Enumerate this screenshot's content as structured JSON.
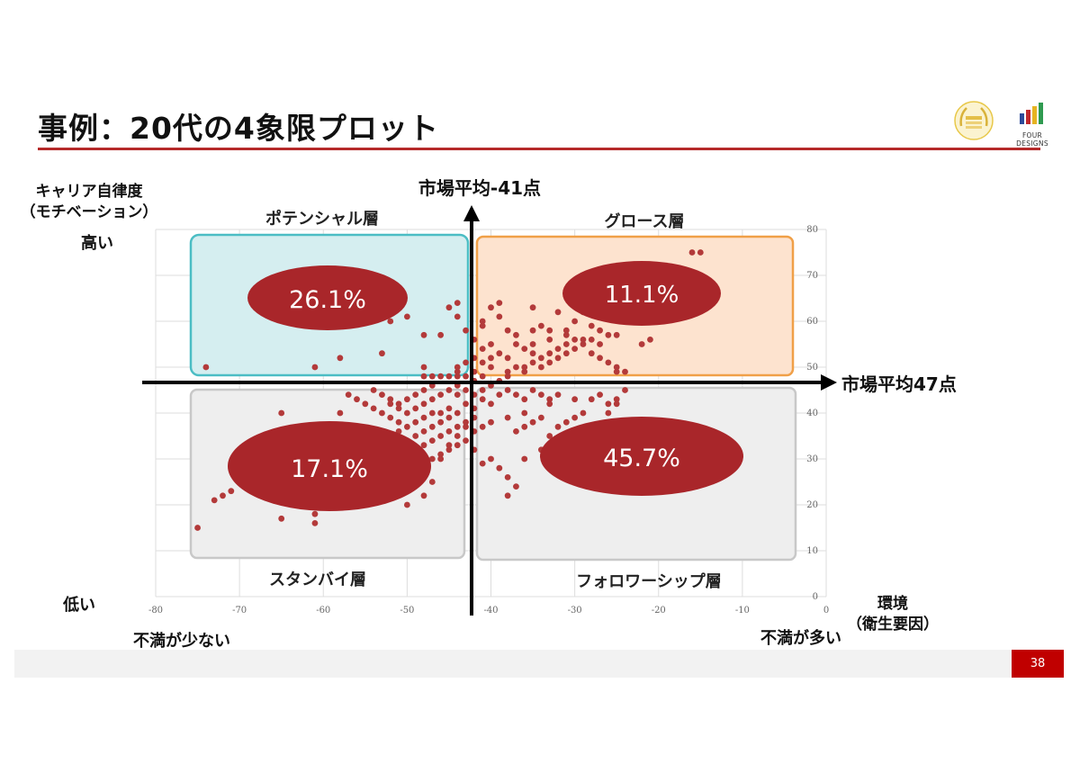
{
  "slide": {
    "title": "事例：20代の4象限プロット",
    "page_number": "38",
    "brand_name": "FOUR DESIGNS"
  },
  "axis_labels": {
    "y_axis_title": "キャリア自律度",
    "y_axis_subtitle": "（モチベーション）",
    "y_high": "高い",
    "y_low": "低い",
    "x_axis_title": "環境",
    "x_axis_subtitle": "（衛生要因）",
    "x_low": "不満が少ない",
    "x_high": "不満が多い",
    "market_avg_x": "市場平均-41点",
    "market_avg_y": "市場平均47点"
  },
  "quadrants": {
    "top_left": {
      "name": "ポテンシャル層",
      "share": "26.1%"
    },
    "top_right": {
      "name": "グロース層",
      "share": "11.1%"
    },
    "bottom_left": {
      "name": "スタンバイ層",
      "share": "17.1%"
    },
    "bottom_right": {
      "name": "フォロワーシップ層",
      "share": "45.7%"
    }
  },
  "colors": {
    "accent": "#b52a2a",
    "point": "#b33a3a",
    "ellipse": "#a9262a",
    "top_left_fill": "#d5eef0",
    "top_left_stroke": "#4bbdc4",
    "top_right_fill": "#fde3cf",
    "top_right_stroke": "#f0a048",
    "bottom_fill": "#eeeeee",
    "bottom_stroke": "#c8c8c8"
  },
  "chart_data": {
    "type": "scatter",
    "xlim": [
      -80,
      0
    ],
    "ylim": [
      0,
      80
    ],
    "x_ticks": [
      -80,
      -70,
      -60,
      -50,
      -40,
      -30,
      -20,
      -10,
      0
    ],
    "y_ticks": [
      0,
      10,
      20,
      30,
      40,
      50,
      60,
      70,
      80
    ],
    "tick_labels_x": [
      "-80",
      "-70",
      "-60",
      "-50",
      "-40",
      "-30",
      "-20",
      "-10",
      "0"
    ],
    "tick_labels_y": [
      "0",
      "10",
      "20",
      "30",
      "40",
      "50",
      "60",
      "70",
      "80"
    ],
    "grid": true,
    "reference_lines": {
      "x": -41,
      "y": 47
    },
    "points": [
      [
        -16,
        75
      ],
      [
        -15,
        75
      ],
      [
        -44,
        64
      ],
      [
        -45,
        63
      ],
      [
        -44,
        61
      ],
      [
        -39,
        64
      ],
      [
        -40,
        63
      ],
      [
        -39,
        61
      ],
      [
        -35,
        63
      ],
      [
        -32,
        62
      ],
      [
        -29,
        62
      ],
      [
        -41,
        60
      ],
      [
        -43,
        58
      ],
      [
        -42,
        56
      ],
      [
        -46,
        57
      ],
      [
        -41,
        59
      ],
      [
        -38,
        58
      ],
      [
        -37,
        57
      ],
      [
        -35,
        58
      ],
      [
        -34,
        59
      ],
      [
        -33,
        58
      ],
      [
        -31,
        58
      ],
      [
        -30,
        60
      ],
      [
        -28,
        59
      ],
      [
        -27,
        58
      ],
      [
        -26,
        57
      ],
      [
        -33,
        56
      ],
      [
        -31,
        57
      ],
      [
        -35,
        55
      ],
      [
        -36,
        54
      ],
      [
        -37,
        55
      ],
      [
        -40,
        55
      ],
      [
        -41,
        54
      ],
      [
        -39,
        53
      ],
      [
        -38,
        52
      ],
      [
        -40,
        52
      ],
      [
        -42,
        52
      ],
      [
        -41,
        51
      ],
      [
        -43,
        51
      ],
      [
        -44,
        50
      ],
      [
        -42,
        49
      ],
      [
        -40,
        50
      ],
      [
        -38,
        49
      ],
      [
        -37,
        50
      ],
      [
        -36,
        49
      ],
      [
        -34,
        50
      ],
      [
        -33,
        51
      ],
      [
        -32,
        52
      ],
      [
        -31,
        53
      ],
      [
        -30,
        54
      ],
      [
        -29,
        55
      ],
      [
        -28,
        53
      ],
      [
        -27,
        52
      ],
      [
        -26,
        51
      ],
      [
        -25,
        50
      ],
      [
        -35,
        53
      ],
      [
        -34,
        52
      ],
      [
        -33,
        53
      ],
      [
        -32,
        54
      ],
      [
        -31,
        55
      ],
      [
        -30,
        56
      ],
      [
        -29,
        56
      ],
      [
        -28,
        56
      ],
      [
        -27,
        55
      ],
      [
        -25,
        57
      ],
      [
        -21,
        56
      ],
      [
        -22,
        55
      ],
      [
        -25,
        49
      ],
      [
        -24,
        49
      ],
      [
        -35,
        51
      ],
      [
        -36,
        50
      ],
      [
        -38,
        48
      ],
      [
        -39,
        47
      ],
      [
        -41,
        48
      ],
      [
        -42,
        47
      ],
      [
        -44,
        48
      ],
      [
        -45,
        48
      ],
      [
        -46,
        48
      ],
      [
        -47,
        48
      ],
      [
        -48,
        48
      ],
      [
        -43,
        48
      ],
      [
        -74,
        50
      ],
      [
        -61,
        50
      ],
      [
        -58,
        52
      ],
      [
        -53,
        53
      ],
      [
        -48,
        57
      ],
      [
        -50,
        61
      ],
      [
        -52,
        60
      ],
      [
        -48,
        50
      ],
      [
        -44,
        49
      ],
      [
        -44,
        46
      ],
      [
        -43,
        45
      ],
      [
        -42,
        44
      ],
      [
        -41,
        45
      ],
      [
        -40,
        46
      ],
      [
        -39,
        44
      ],
      [
        -38,
        45
      ],
      [
        -37,
        44
      ],
      [
        -36,
        43
      ],
      [
        -35,
        45
      ],
      [
        -34,
        44
      ],
      [
        -33,
        43
      ],
      [
        -32,
        44
      ],
      [
        -30,
        43
      ],
      [
        -28,
        43
      ],
      [
        -27,
        44
      ],
      [
        -26,
        42
      ],
      [
        -25,
        43
      ],
      [
        -33,
        42
      ],
      [
        -36,
        40
      ],
      [
        -38,
        39
      ],
      [
        -40,
        38
      ],
      [
        -41,
        37
      ],
      [
        -42,
        36
      ],
      [
        -43,
        38
      ],
      [
        -44,
        40
      ],
      [
        -45,
        39
      ],
      [
        -46,
        38
      ],
      [
        -47,
        37
      ],
      [
        -48,
        36
      ],
      [
        -49,
        35
      ],
      [
        -50,
        34
      ],
      [
        -51,
        38
      ],
      [
        -52,
        39
      ],
      [
        -53,
        40
      ],
      [
        -54,
        41
      ],
      [
        -55,
        42
      ],
      [
        -56,
        43
      ],
      [
        -57,
        44
      ],
      [
        -58,
        40
      ],
      [
        -59,
        36
      ],
      [
        -60,
        35
      ],
      [
        -61,
        34
      ],
      [
        -62,
        33
      ],
      [
        -63,
        32
      ],
      [
        -64,
        31
      ],
      [
        -65,
        40
      ],
      [
        -66,
        30
      ],
      [
        -67,
        28
      ],
      [
        -68,
        27
      ],
      [
        -69,
        26
      ],
      [
        -70,
        25
      ],
      [
        -71,
        23
      ],
      [
        -72,
        22
      ],
      [
        -73,
        21
      ],
      [
        -75,
        15
      ],
      [
        -61,
        18
      ],
      [
        -61,
        16
      ],
      [
        -65,
        17
      ],
      [
        -50,
        20
      ],
      [
        -48,
        22
      ],
      [
        -47,
        25
      ],
      [
        -46,
        30
      ],
      [
        -45,
        33
      ],
      [
        -44,
        35
      ],
      [
        -43,
        37
      ],
      [
        -42,
        39
      ],
      [
        -42,
        32
      ],
      [
        -41,
        29
      ],
      [
        -40,
        30
      ],
      [
        -39,
        28
      ],
      [
        -38,
        26
      ],
      [
        -37,
        24
      ],
      [
        -38,
        22
      ],
      [
        -36,
        30
      ],
      [
        -34,
        32
      ],
      [
        -33,
        35
      ],
      [
        -32,
        37
      ],
      [
        -31,
        38
      ],
      [
        -30,
        39
      ],
      [
        -29,
        40
      ],
      [
        -37,
        36
      ],
      [
        -36,
        37
      ],
      [
        -35,
        38
      ],
      [
        -34,
        39
      ],
      [
        -40,
        42
      ],
      [
        -41,
        43
      ],
      [
        -42,
        41
      ],
      [
        -43,
        42
      ],
      [
        -44,
        44
      ],
      [
        -45,
        45
      ],
      [
        -46,
        44
      ],
      [
        -47,
        43
      ],
      [
        -48,
        42
      ],
      [
        -49,
        41
      ],
      [
        -50,
        40
      ],
      [
        -51,
        41
      ],
      [
        -52,
        43
      ],
      [
        -53,
        44
      ],
      [
        -54,
        45
      ],
      [
        -47,
        46
      ],
      [
        -48,
        45
      ],
      [
        -49,
        44
      ],
      [
        -50,
        43
      ],
      [
        -51,
        42
      ],
      [
        -52,
        42
      ],
      [
        -45,
        41
      ],
      [
        -46,
        40
      ],
      [
        -47,
        40
      ],
      [
        -48,
        39
      ],
      [
        -49,
        38
      ],
      [
        -50,
        37
      ],
      [
        -51,
        36
      ],
      [
        -52,
        35
      ],
      [
        -53,
        34
      ],
      [
        -54,
        33
      ],
      [
        -55,
        32
      ],
      [
        -56,
        31
      ],
      [
        -57,
        30
      ],
      [
        -58,
        29
      ],
      [
        -59,
        28
      ],
      [
        -60,
        27
      ],
      [
        -61,
        26
      ],
      [
        -62,
        25
      ],
      [
        -63,
        24
      ],
      [
        -44,
        37
      ],
      [
        -45,
        36
      ],
      [
        -46,
        35
      ],
      [
        -47,
        34
      ],
      [
        -48,
        33
      ],
      [
        -43,
        34
      ],
      [
        -44,
        33
      ],
      [
        -45,
        32
      ],
      [
        -46,
        31
      ],
      [
        -47,
        30
      ],
      [
        -28,
        35
      ],
      [
        -27,
        37
      ],
      [
        -26,
        40
      ],
      [
        -25,
        42
      ],
      [
        -24,
        45
      ]
    ]
  }
}
